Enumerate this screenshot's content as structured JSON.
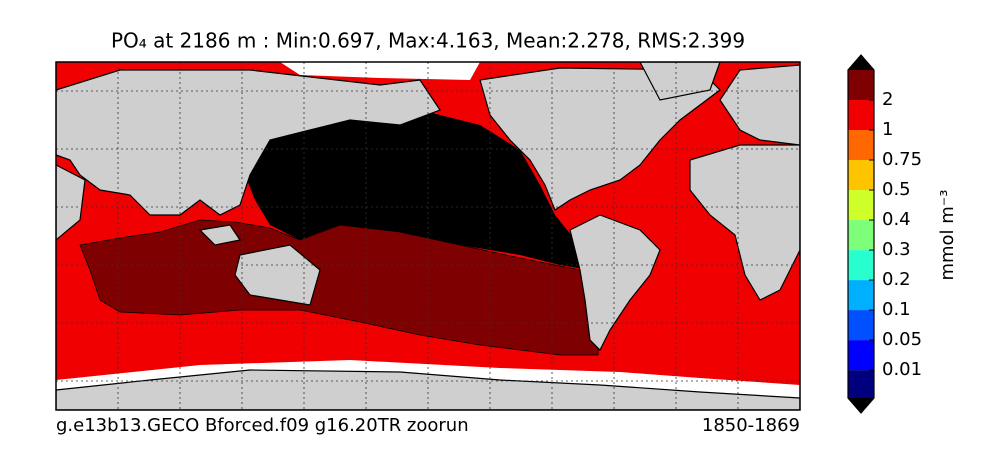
{
  "title": "PO₄  at 2186 m : Min:0.697, Max:4.163, Mean:2.278, RMS:2.399",
  "footer": {
    "left": "g.e13b13.GECO Bforced.f09 g16.20TR zoorun",
    "right": "1850-1869"
  },
  "colorbar": {
    "label": "mmol m⁻³",
    "ticks": [
      0.01,
      0.05,
      0.1,
      0.2,
      0.3,
      0.4,
      0.5,
      0.75,
      1,
      2
    ],
    "colors": [
      "#00007f",
      "#0000ff",
      "#0050ff",
      "#00b0ff",
      "#29ffce",
      "#7dff7a",
      "#ceff29",
      "#ffc400",
      "#ff6800",
      "#f00000",
      "#7f0000"
    ]
  }
}
